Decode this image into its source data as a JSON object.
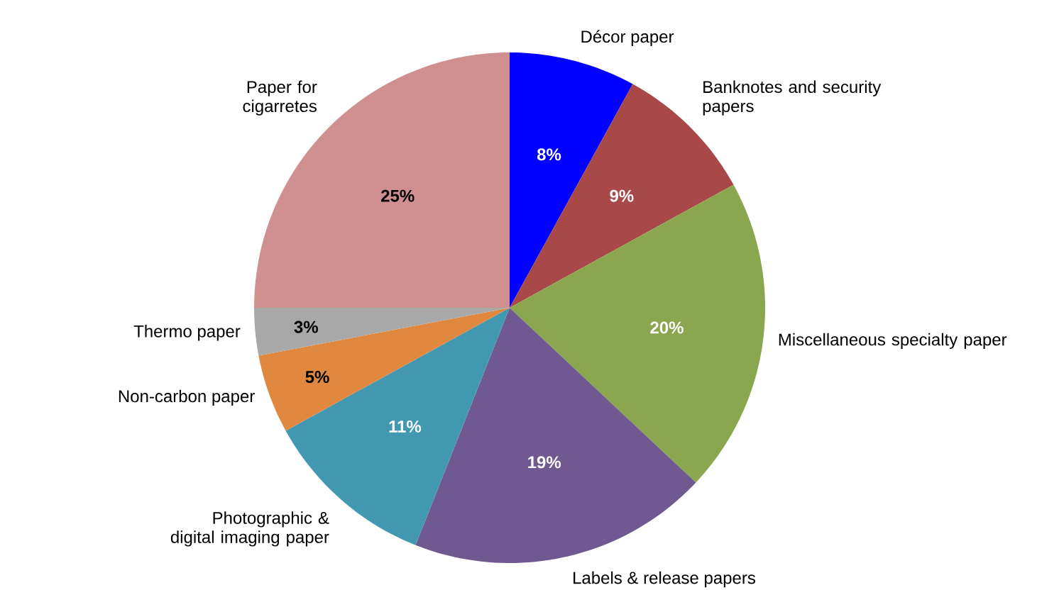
{
  "chart_data": {
    "type": "pie",
    "categories": [
      "Décor paper",
      "Banknotes and security papers",
      "Miscellaneous specialty paper",
      "Labels & release papers",
      "Photographic & digital imaging paper",
      "Non-carbon paper",
      "Thermo paper",
      "Paper for cigarretes"
    ],
    "values": [
      8,
      9,
      20,
      19,
      11,
      5,
      3,
      25
    ],
    "value_labels": [
      "8%",
      "9%",
      "20%",
      "19%",
      "11%",
      "5%",
      "3%",
      "25%"
    ],
    "colors": [
      "#0000ff",
      "#a84848",
      "#8aa64e",
      "#705890",
      "#4298b0",
      "#e08840",
      "#a8a8a8",
      "#d09090"
    ]
  }
}
